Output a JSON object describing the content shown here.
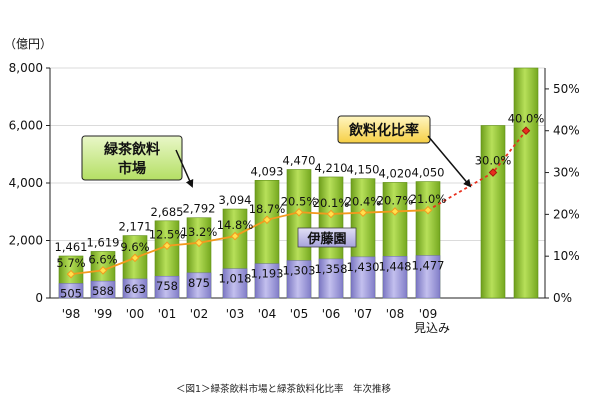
{
  "chart_data": {
    "type": "bar",
    "y_unit_label": "（億円）",
    "caption": "＜図1＞緑茶飲料市場と緑茶飲料化比率　年次推移",
    "forecast_label": "見込み",
    "callout_market": [
      "緑茶飲料",
      "市場"
    ],
    "callout_ratio": "飲料化比率",
    "itoen_label": "伊藤園",
    "ylim_left": [
      0,
      8000
    ],
    "yticks_left": [
      "0",
      "2,000",
      "4,000",
      "6,000",
      "8,000"
    ],
    "ylim_right": [
      0,
      55
    ],
    "yticks_right": [
      "0%",
      "10%",
      "20%",
      "30%",
      "40%",
      "50%"
    ],
    "categories": [
      "'98",
      "'99",
      "'00",
      "'01",
      "'02",
      "'03",
      "'04",
      "'05",
      "'06",
      "'07",
      "'08",
      "'09",
      "",
      ""
    ],
    "series": [
      {
        "name": "緑茶飲料市場",
        "values": [
          1461,
          1619,
          2171,
          2685,
          2792,
          3094,
          4093,
          4470,
          4210,
          4150,
          4020,
          4050,
          6000,
          8000
        ],
        "labels": [
          "1,461",
          "1,619",
          "2,171",
          "2,685",
          "2,792",
          "3,094",
          "4,093",
          "4,470",
          "4,210",
          "4,150",
          "4,020",
          "4,050",
          "",
          ""
        ]
      },
      {
        "name": "伊藤園",
        "values": [
          505,
          588,
          663,
          758,
          875,
          1018,
          1193,
          1303,
          1358,
          1430,
          1448,
          1477,
          null,
          null
        ],
        "labels": [
          "505",
          "588",
          "663",
          "758",
          "875",
          "1,018",
          "1,193",
          "1,303",
          "1,358",
          "1,430",
          "1,448",
          "1,477",
          "",
          ""
        ]
      },
      {
        "name": "飲料化比率",
        "values": [
          5.7,
          6.6,
          9.6,
          12.5,
          13.2,
          14.8,
          18.7,
          20.5,
          20.1,
          20.4,
          20.7,
          21.0,
          30.0,
          40.0
        ],
        "labels": [
          "5.7%",
          "6.6%",
          "9.6%",
          "12.5%",
          "13.2%",
          "14.8%",
          "18.7%",
          "20.5%",
          "20.1%",
          "20.4%",
          "20.7%",
          "21.0%",
          "30.0%",
          "40.0%"
        ]
      }
    ],
    "colors": {
      "market_bar": "#99cc33",
      "market_bar_dark": "#5f8f16",
      "itoen_bar": "#9b97d6",
      "ratio_line": "#f39a1e",
      "ratio_marker": "#ffe14d",
      "ratio_forecast": "#e8301e"
    }
  }
}
